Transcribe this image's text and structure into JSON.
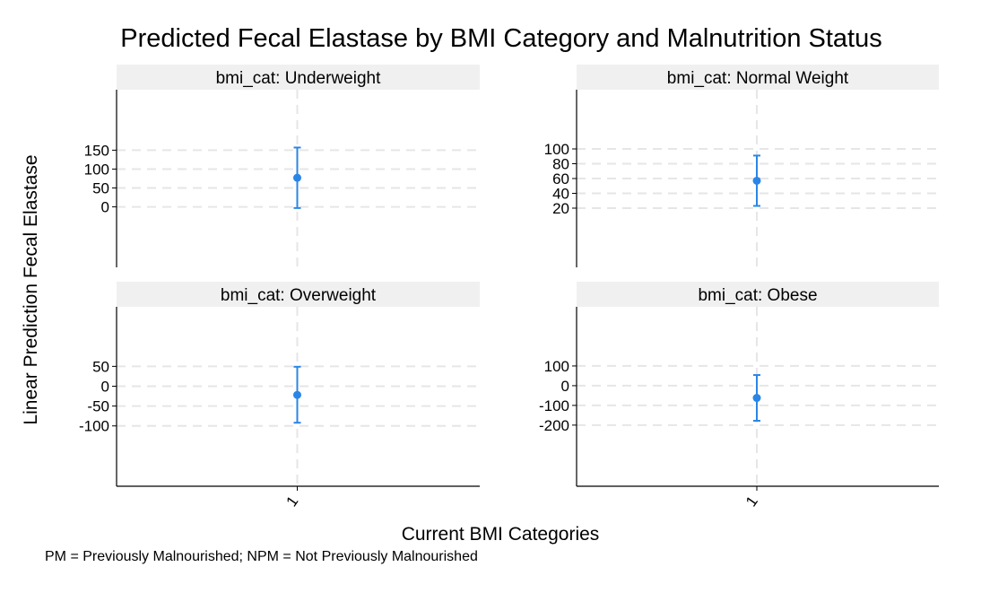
{
  "title": "Predicted Fecal Elastase by BMI Category and Malnutrition Status",
  "ylabel": "Linear Prediction Fecal Elastase",
  "xlabel": "Current BMI Categories",
  "note": "PM = Previously Malnourished; NPM = Not Previously Malnourished",
  "colors": {
    "point": "#2a86e6",
    "strip": "#f0f0f0",
    "grid": "#e6e6e6",
    "axis": "#000000"
  },
  "chart_data": [
    {
      "type": "scatter",
      "panel_label": "bmi_cat: Underweight",
      "x_ticks": [
        "1"
      ],
      "y_ticks": [
        0,
        50,
        100,
        150
      ],
      "ylim": [
        -160,
        310
      ],
      "points": [
        {
          "x": "1",
          "estimate": 77,
          "ci_low": -3,
          "ci_high": 157
        }
      ]
    },
    {
      "type": "scatter",
      "panel_label": "bmi_cat: Normal Weight",
      "x_ticks": [
        "1"
      ],
      "y_ticks": [
        20,
        40,
        60,
        80,
        100
      ],
      "ylim": [
        -60,
        180
      ],
      "points": [
        {
          "x": "1",
          "estimate": 57,
          "ci_low": 23,
          "ci_high": 91
        }
      ]
    },
    {
      "type": "scatter",
      "panel_label": "bmi_cat: Overweight",
      "x_ticks": [
        "1"
      ],
      "y_ticks": [
        -100,
        -50,
        0,
        50
      ],
      "ylim": [
        -252,
        200
      ],
      "points": [
        {
          "x": "1",
          "estimate": -22,
          "ci_low": -92,
          "ci_high": 49
        }
      ]
    },
    {
      "type": "scatter",
      "panel_label": "bmi_cat: Obese",
      "x_ticks": [
        "1"
      ],
      "y_ticks": [
        -200,
        -100,
        0,
        100
      ],
      "ylim": [
        -510,
        400
      ],
      "points": [
        {
          "x": "1",
          "estimate": -62,
          "ci_low": -178,
          "ci_high": 54
        }
      ]
    }
  ]
}
